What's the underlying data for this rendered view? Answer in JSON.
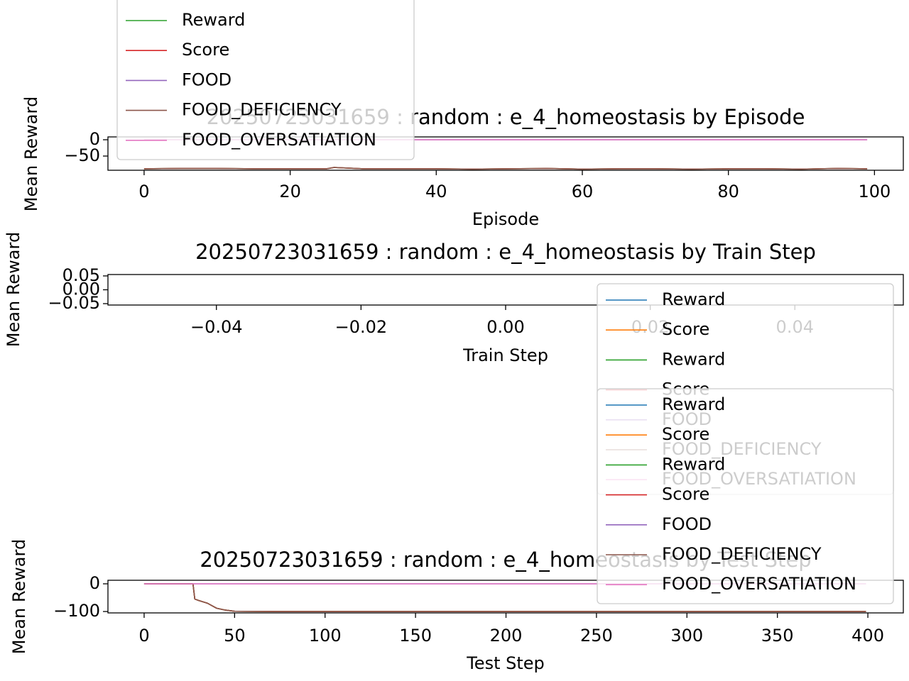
{
  "chart_data": [
    {
      "type": "line",
      "title": "20250723031659 : random : e_4_homeostasis by Episode",
      "xlabel": "Episode",
      "ylabel": "Mean Reward",
      "x": [
        0,
        5,
        10,
        15,
        20,
        25,
        26,
        30,
        35,
        40,
        45,
        50,
        55,
        60,
        65,
        70,
        75,
        80,
        85,
        90,
        95,
        99
      ],
      "series": [
        {
          "name": "Reward",
          "color": "#2ca02c",
          "values": [
            -89,
            -88,
            -88,
            -89,
            -89,
            -89,
            -85,
            -89,
            -89,
            -89,
            -90,
            -89,
            -88,
            -90,
            -89,
            -89,
            -90,
            -89,
            -89,
            -90,
            -88,
            -89
          ]
        },
        {
          "name": "Score",
          "color": "#d62728",
          "values": [
            -89,
            -88,
            -88,
            -89,
            -89,
            -89,
            -85,
            -89,
            -89,
            -89,
            -90,
            -89,
            -88,
            -90,
            -89,
            -89,
            -90,
            -89,
            -89,
            -90,
            -88,
            -89
          ]
        },
        {
          "name": "FOOD",
          "color": "#9467bd",
          "values": [
            0,
            0,
            0,
            0,
            0,
            0,
            0,
            0,
            0,
            0,
            0,
            0,
            0,
            0,
            0,
            0,
            0,
            0,
            0,
            0,
            0,
            0
          ]
        },
        {
          "name": "FOOD_DEFICIENCY",
          "color": "#8c564b",
          "values": [
            -89,
            -88,
            -88,
            -89,
            -89,
            -89,
            -85,
            -89,
            -89,
            -89,
            -90,
            -89,
            -88,
            -90,
            -89,
            -89,
            -90,
            -89,
            -89,
            -90,
            -88,
            -89
          ]
        },
        {
          "name": "FOOD_OVERSATIATION",
          "color": "#e377c2",
          "values": [
            0,
            0,
            0,
            0,
            0,
            0,
            0,
            0,
            0,
            0,
            0,
            0,
            0,
            0,
            0,
            0,
            0,
            0,
            0,
            0,
            0,
            0
          ]
        }
      ],
      "xlim": [
        -4.95,
        103.95
      ],
      "xticks": [
        0,
        20,
        40,
        60,
        80,
        100
      ],
      "ylim": [
        -93.5,
        8.7
      ],
      "yticks": [
        0,
        {
          "value": -50,
          "label": "−50"
        }
      ]
    },
    {
      "type": "line",
      "title": "20250723031659 : random : e_4_homeostasis by Train Step",
      "xlabel": "Train Step",
      "ylabel": "Mean Reward",
      "x": [],
      "series": [
        {
          "name": "Reward",
          "color": "#1f77b4",
          "values": []
        },
        {
          "name": "Score",
          "color": "#ff7f0e",
          "values": []
        },
        {
          "name": "Reward",
          "color": "#2ca02c",
          "values": []
        },
        {
          "name": "Score",
          "color": "#d62728",
          "values": []
        },
        {
          "name": "FOOD",
          "color": "#9467bd",
          "values": []
        },
        {
          "name": "FOOD_DEFICIENCY",
          "color": "#8c564b",
          "values": []
        },
        {
          "name": "FOOD_OVERSATIATION",
          "color": "#e377c2",
          "values": []
        }
      ],
      "xlim": [
        -0.055,
        0.055
      ],
      "xticks": [
        {
          "value": -0.04,
          "label": "−0.04"
        },
        {
          "value": -0.02,
          "label": "−0.02"
        },
        {
          "value": 0,
          "label": "0.00"
        },
        {
          "value": 0.02,
          "label": "0.02"
        },
        {
          "value": 0.04,
          "label": "0.04"
        }
      ],
      "ylim": [
        -0.055,
        0.055
      ],
      "yticks": [
        {
          "value": -0.05,
          "label": "−0.05"
        },
        {
          "value": 0,
          "label": "0.00"
        },
        {
          "value": 0.05,
          "label": "0.05"
        }
      ]
    },
    {
      "type": "line",
      "title": "20250723031659 : random : e_4_homeostasis by Test Step",
      "xlabel": "Test Step",
      "ylabel": "Mean Reward",
      "x": [
        0,
        10,
        20,
        27,
        28,
        30,
        35,
        40,
        45,
        50,
        75,
        100,
        150,
        200,
        250,
        300,
        350,
        399
      ],
      "series": [
        {
          "name": "Reward",
          "color": "#1f77b4",
          "values": [
            0,
            0,
            0,
            0,
            -55,
            -60,
            -70,
            -88,
            -95,
            -99,
            -100,
            -100,
            -100,
            -100,
            -100,
            -100,
            -100,
            -100
          ]
        },
        {
          "name": "Score",
          "color": "#ff7f0e",
          "values": [
            0,
            0,
            0,
            0,
            -55,
            -60,
            -70,
            -88,
            -95,
            -99,
            -100,
            -100,
            -100,
            -100,
            -100,
            -100,
            -100,
            -100
          ]
        },
        {
          "name": "Reward",
          "color": "#2ca02c",
          "values": [
            0,
            0,
            0,
            0,
            -55,
            -60,
            -70,
            -88,
            -95,
            -99,
            -100,
            -100,
            -100,
            -100,
            -100,
            -100,
            -100,
            -100
          ]
        },
        {
          "name": "Score",
          "color": "#d62728",
          "values": [
            0,
            0,
            0,
            0,
            -55,
            -60,
            -70,
            -88,
            -95,
            -99,
            -100,
            -100,
            -100,
            -100,
            -100,
            -100,
            -100,
            -100
          ]
        },
        {
          "name": "FOOD",
          "color": "#9467bd",
          "values": [
            0,
            0,
            0,
            0,
            0,
            0,
            0,
            0,
            0,
            0,
            0,
            0,
            0,
            0,
            0,
            0,
            0,
            0
          ]
        },
        {
          "name": "FOOD_DEFICIENCY",
          "color": "#8c564b",
          "values": [
            0,
            0,
            0,
            0,
            -55,
            -60,
            -70,
            -88,
            -95,
            -99,
            -100,
            -100,
            -100,
            -100,
            -100,
            -100,
            -100,
            -100
          ]
        },
        {
          "name": "FOOD_OVERSATIATION",
          "color": "#e377c2",
          "values": [
            0,
            0,
            0,
            0,
            0,
            0,
            0,
            0,
            0,
            0,
            0,
            0,
            0,
            0,
            0,
            0,
            0,
            0
          ]
        }
      ],
      "xlim": [
        -20,
        419.6
      ],
      "xticks": [
        0,
        50,
        100,
        150,
        200,
        250,
        300,
        350,
        400
      ],
      "ylim": [
        -105,
        12.8
      ],
      "yticks": [
        0,
        {
          "value": -100,
          "label": "−100"
        }
      ]
    }
  ]
}
